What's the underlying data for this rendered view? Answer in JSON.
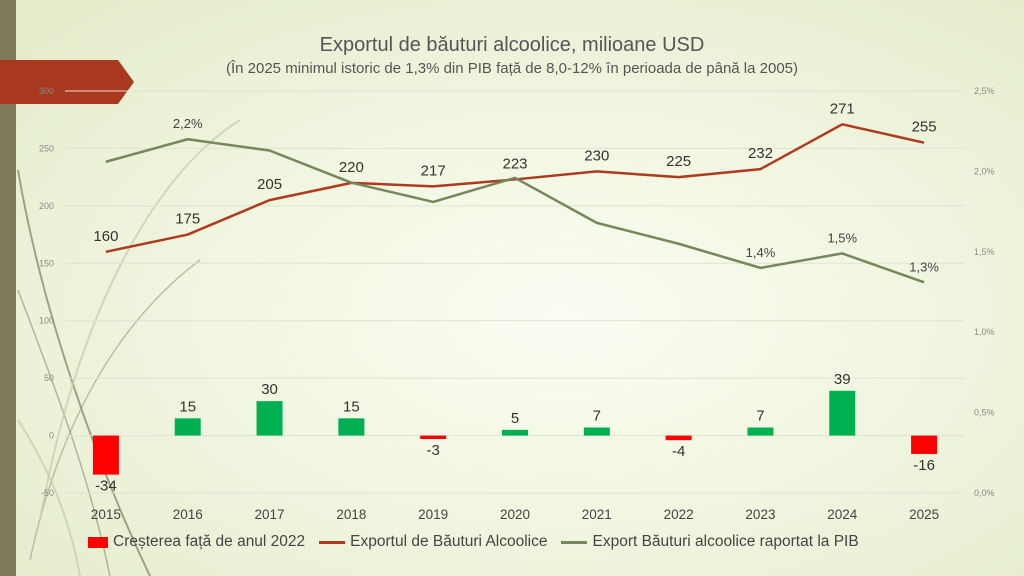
{
  "title": "Exportul de băuturi alcoolice, milioane USD",
  "subtitle": "(În 2025 minimul istoric de 1,3% din PIB față de 8,0-12% în perioada de până la 2005)",
  "colors": {
    "increase_bar": "#00b050",
    "decrease_bar": "#ff0000",
    "export_line": "#b03a1d",
    "gdp_line": "#76875a",
    "banner": "#a8381e",
    "side_bar": "#7d7b58"
  },
  "legend": {
    "bars": "Creșterea față de anul 2022",
    "export": "Exportul de Băuturi Alcoolice",
    "gdp": "Export Băuturi alcoolice raportat la PIB"
  },
  "chart_data": {
    "type": "bar+line",
    "categories": [
      "2015",
      "2016",
      "2017",
      "2018",
      "2019",
      "2020",
      "2021",
      "2022",
      "2023",
      "2024",
      "2025"
    ],
    "series": [
      {
        "name": "Creșterea față de anul 2022",
        "kind": "bar",
        "axis": "left",
        "values": [
          -34,
          15,
          30,
          15,
          -3,
          5,
          7,
          -4,
          7,
          39,
          -16
        ],
        "data_labels": [
          "-34",
          "15",
          "30",
          "15",
          "-3",
          "5",
          "7",
          "-4",
          "7",
          "39",
          "-16"
        ]
      },
      {
        "name": "Exportul de Băuturi Alcoolice",
        "kind": "line",
        "axis": "left",
        "values": [
          160,
          175,
          205,
          220,
          217,
          223,
          230,
          225,
          232,
          271,
          255
        ],
        "data_labels": [
          "160",
          "175",
          "205",
          "220",
          "217",
          "223",
          "230",
          "225",
          "232",
          "271",
          "255"
        ]
      },
      {
        "name": "Export Băuturi alcoolice raportat la PIB",
        "kind": "line",
        "axis": "right",
        "values": [
          2.06,
          2.2,
          2.13,
          1.93,
          1.81,
          1.96,
          1.68,
          1.55,
          1.4,
          1.49,
          1.31
        ],
        "data_labels": [
          "",
          "2,2%",
          "",
          "",
          "",
          "",
          "",
          "",
          "1,4%",
          "1,5%",
          "1,3%"
        ]
      }
    ],
    "y_left": {
      "range": [
        -50,
        300
      ],
      "ticks": [
        "300",
        "250",
        "200",
        "150",
        "100",
        "50",
        "0",
        "-50"
      ]
    },
    "y_right": {
      "range": [
        0,
        2.5
      ],
      "ticks": [
        "2,5%",
        "2,0%",
        "1,5%",
        "1,0%",
        "0,5%",
        "0,0%"
      ]
    },
    "grid": true,
    "legend_position": "bottom"
  }
}
